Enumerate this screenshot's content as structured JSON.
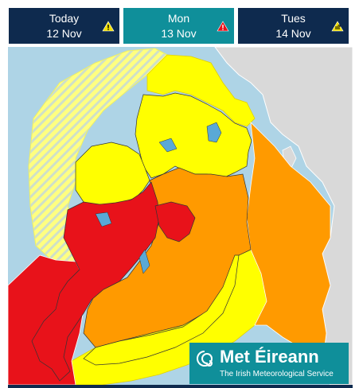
{
  "tabs": [
    {
      "day": "Today",
      "date": "12 Nov",
      "warning": "yellow-warning-icon",
      "warning_color": "#f2e000",
      "active": false
    },
    {
      "day": "Mon",
      "date": "13 Nov",
      "warning": "red-warning-icon",
      "warning_color": "#e8121a",
      "active": true
    },
    {
      "day": "Tues",
      "date": "14 Nov",
      "warning": "yellow-wind-warning-icon",
      "warning_color": "#f2e000",
      "active": false
    }
  ],
  "legend_colors": {
    "red": "#e8121a",
    "orange": "#ff9a00",
    "yellow": "#ffff00",
    "sea": "#aed4e6",
    "land_other": "#d9d9d9",
    "brand": "#0f8f9a",
    "nav": "#0e2a4e"
  },
  "warning_levels": [
    {
      "level": "red",
      "area": "west"
    },
    {
      "level": "orange",
      "area": "midlands and east"
    },
    {
      "level": "yellow",
      "area": "north, south and north-east"
    },
    {
      "level": "yellow-hatched",
      "area": "western sea areas"
    }
  ],
  "logo": {
    "name": "Met Éireann",
    "tagline": "The Irish Meteorological Service"
  }
}
